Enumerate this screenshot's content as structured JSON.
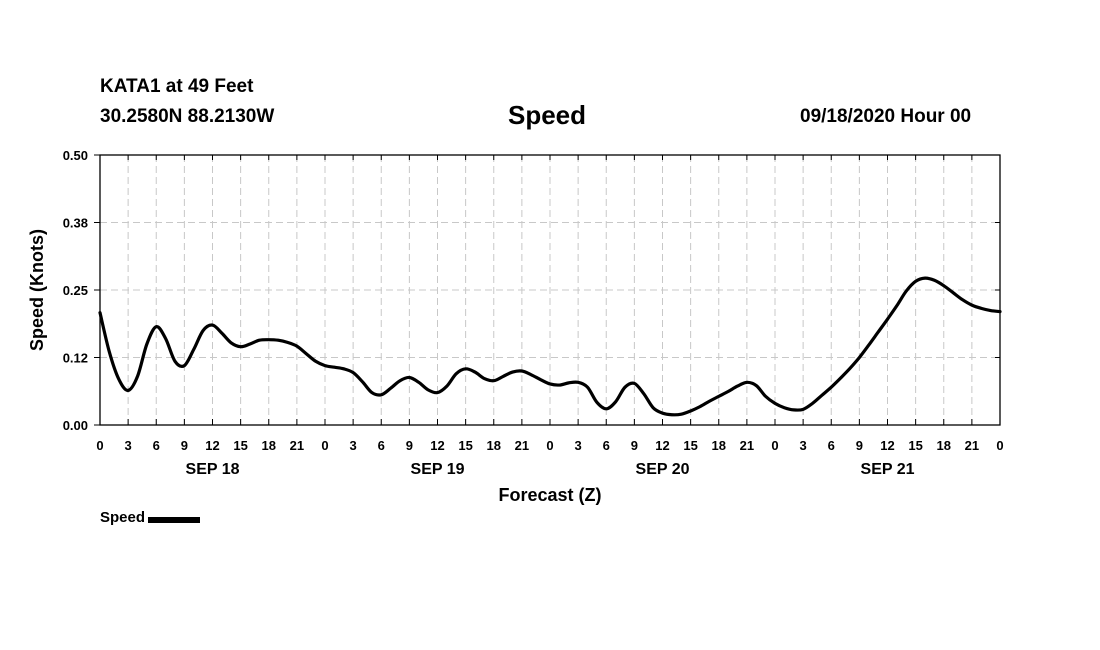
{
  "header": {
    "station": "KATA1 at 49 Feet",
    "coordinates": "30.2580N 88.2130W",
    "issued": "09/18/2020 Hour 00"
  },
  "legend": {
    "label": "Speed"
  },
  "chart_data": {
    "type": "line",
    "title": "Speed",
    "xlabel": "Forecast (Z)",
    "ylabel": "Speed (Knots)",
    "x_unit": "forecast hour",
    "xlim": [
      0,
      96
    ],
    "ylim": [
      0,
      0.5
    ],
    "yticks": [
      0.0,
      0.125,
      0.25,
      0.375,
      0.5
    ],
    "ytick_labels": [
      "0.00",
      "0.12",
      "0.25",
      "0.38",
      "0.50"
    ],
    "xticks": [
      0,
      3,
      6,
      9,
      12,
      15,
      18,
      21,
      24,
      27,
      30,
      33,
      36,
      39,
      42,
      45,
      48,
      51,
      54,
      57,
      60,
      63,
      66,
      69,
      72,
      75,
      78,
      81,
      84,
      87,
      90,
      93,
      96
    ],
    "xtick_labels": [
      "0",
      "3",
      "6",
      "9",
      "12",
      "15",
      "18",
      "21",
      "0",
      "3",
      "6",
      "9",
      "12",
      "15",
      "18",
      "21",
      "0",
      "3",
      "6",
      "9",
      "12",
      "15",
      "18",
      "21",
      "0",
      "3",
      "6",
      "9",
      "12",
      "15",
      "18",
      "21",
      "0"
    ],
    "day_labels": [
      {
        "x": 12,
        "label": "SEP 18"
      },
      {
        "x": 36,
        "label": "SEP 19"
      },
      {
        "x": 60,
        "label": "SEP 20"
      },
      {
        "x": 84,
        "label": "SEP 21"
      }
    ],
    "grid": true,
    "legend_position": "bottom-left",
    "series": [
      {
        "name": "Speed",
        "color": "#000000",
        "x": [
          0,
          1,
          2,
          3,
          4,
          5,
          6,
          7,
          8,
          9,
          10,
          11,
          12,
          13,
          14,
          15,
          16,
          17,
          18,
          19,
          20,
          21,
          22,
          23,
          24,
          25,
          26,
          27,
          28,
          29,
          30,
          31,
          32,
          33,
          34,
          35,
          36,
          37,
          38,
          39,
          40,
          41,
          42,
          43,
          44,
          45,
          46,
          47,
          48,
          49,
          50,
          51,
          52,
          53,
          54,
          55,
          56,
          57,
          58,
          59,
          60,
          61,
          62,
          63,
          64,
          65,
          66,
          67,
          68,
          69,
          70,
          71,
          72,
          73,
          74,
          75,
          76,
          77,
          78,
          79,
          80,
          81,
          82,
          83,
          84,
          85,
          86,
          87,
          88,
          89,
          90,
          91,
          92,
          93,
          94,
          95,
          96
        ],
        "values": [
          0.208,
          0.135,
          0.085,
          0.064,
          0.09,
          0.15,
          0.182,
          0.16,
          0.118,
          0.11,
          0.14,
          0.175,
          0.185,
          0.17,
          0.152,
          0.145,
          0.15,
          0.157,
          0.158,
          0.157,
          0.153,
          0.146,
          0.132,
          0.118,
          0.11,
          0.107,
          0.104,
          0.097,
          0.08,
          0.06,
          0.056,
          0.068,
          0.082,
          0.088,
          0.079,
          0.065,
          0.06,
          0.072,
          0.095,
          0.104,
          0.098,
          0.086,
          0.082,
          0.09,
          0.098,
          0.1,
          0.093,
          0.084,
          0.076,
          0.074,
          0.078,
          0.079,
          0.07,
          0.042,
          0.03,
          0.043,
          0.07,
          0.077,
          0.058,
          0.032,
          0.022,
          0.019,
          0.02,
          0.026,
          0.034,
          0.044,
          0.053,
          0.062,
          0.072,
          0.079,
          0.073,
          0.053,
          0.04,
          0.032,
          0.028,
          0.029,
          0.04,
          0.055,
          0.07,
          0.087,
          0.105,
          0.125,
          0.148,
          0.172,
          0.196,
          0.221,
          0.248,
          0.266,
          0.272,
          0.268,
          0.258,
          0.245,
          0.232,
          0.222,
          0.216,
          0.212,
          0.21
        ]
      }
    ]
  }
}
